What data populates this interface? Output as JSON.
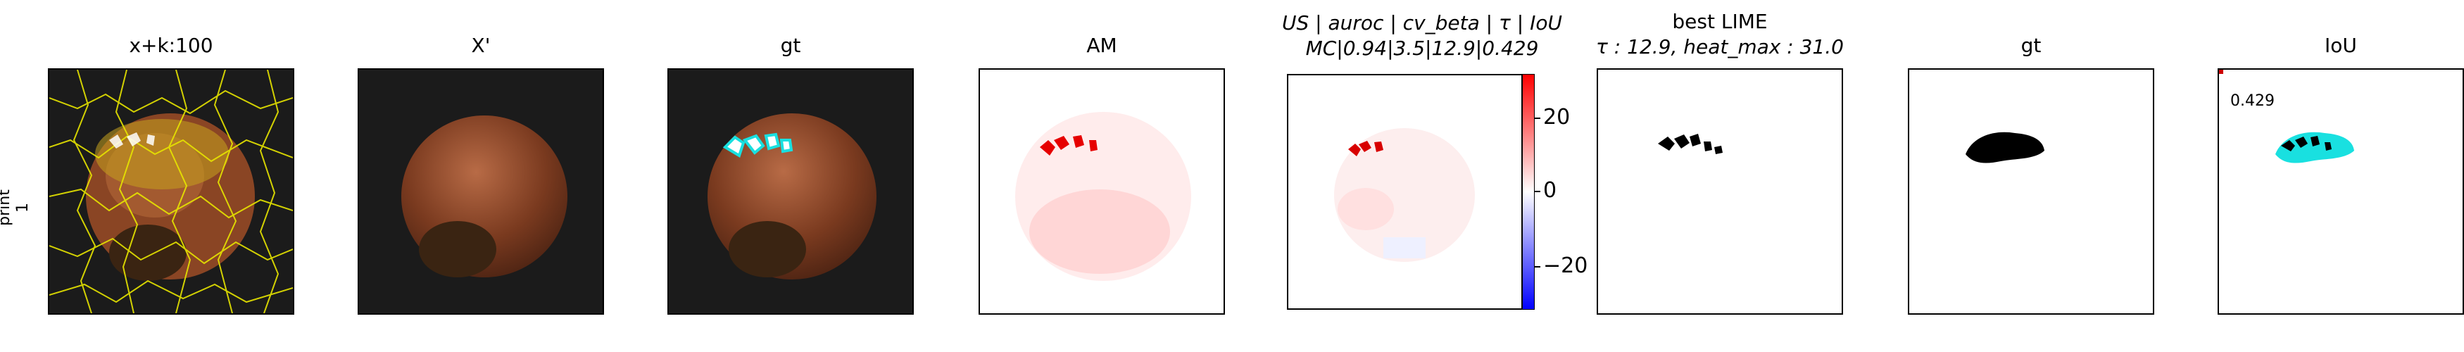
{
  "row_label": "print\n1",
  "panels": [
    {
      "title": "x+k:100"
    },
    {
      "title": "X'"
    },
    {
      "title": "gt"
    },
    {
      "title": "AM"
    },
    {
      "title_line1": "US | auroc | cv_beta | τ | IoU",
      "title_line2": "MC|0.94|3.5|12.9|0.429"
    },
    {
      "title_line1": "best LIME",
      "title_line2": "τ : 12.9, heat_max : 31.0"
    },
    {
      "title": "gt"
    },
    {
      "title": "IoU",
      "iou_value": "0.429"
    }
  ],
  "colorbar": {
    "ticks": [
      "20",
      "0",
      "−20"
    ],
    "max": 31,
    "min": -31
  },
  "colors": {
    "hazelnut": "#7a3a1f",
    "background": "#1b1b1b",
    "contour": "#e7e500",
    "cyan": "#19e0e0",
    "heat": "#ff0000"
  }
}
